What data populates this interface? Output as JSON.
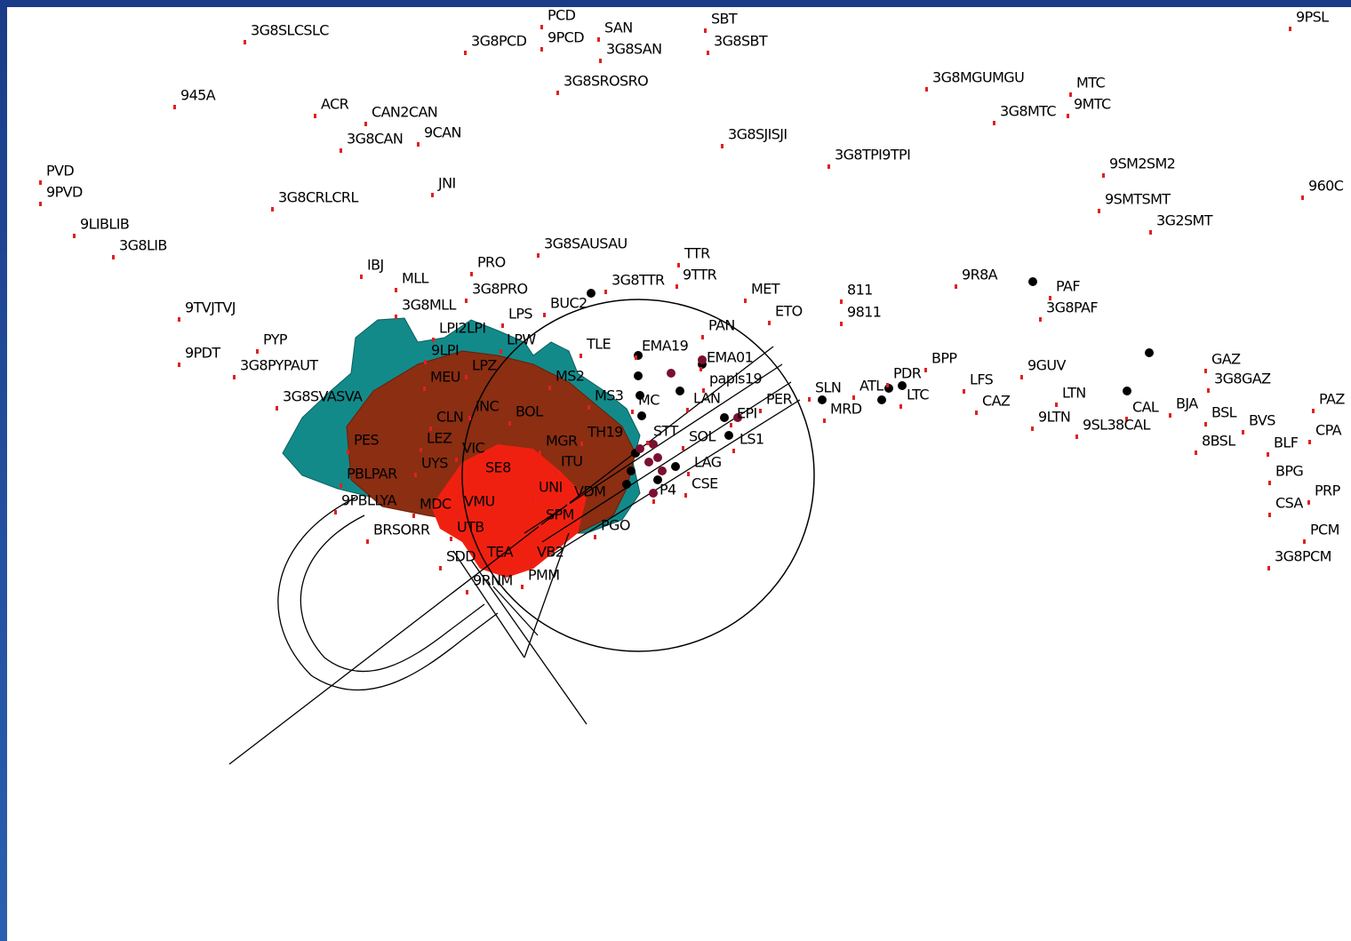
{
  "labels": [
    "PCD",
    "3G8SLCSLC",
    "3G8PCD",
    "9PCD",
    "SAN",
    "3G8SAN",
    "SBT",
    "3G8SBT",
    "9PSL",
    "3G8SROSRO",
    "945A",
    "ACR",
    "CAN2CAN",
    "3G8CAN",
    "9CAN",
    "3G8MGUMGU",
    "MTC",
    "3G8MTC",
    "9MTC",
    "3G8SJISJI",
    "3G8TPI9TPI",
    "9SM2SM2",
    "PVD",
    "9PVD",
    "JNI",
    "3G8CRLCRL",
    "960C",
    "9SMTSMT",
    "3G2SMT",
    "9LIBLIB",
    "3G8LIB",
    "3G8SAUSAU",
    "TTR",
    "9TTR",
    "3G8TTR",
    "PRO",
    "IBJ",
    "MLL",
    "3G8PRO",
    "9R8A",
    "PAF",
    "3G8PAF",
    "MET",
    "811",
    "ETO",
    "9811",
    "BUC2",
    "3G8MLL",
    "LPS",
    "9TVJTVJ",
    "LPI2LPI",
    "PAN",
    "PYP",
    "LPW",
    "TLE",
    "EMA19",
    "9LPI",
    "9PDT",
    "BPP",
    "EMA01",
    "GAZ",
    "3G8PYPAUT",
    "LPZ",
    "9GUV",
    "papis19",
    "MS2",
    "MEU",
    "PDR",
    "LFS",
    "3G8GAZ",
    "3G8SVASVA",
    "MS3",
    "MC",
    "LAN",
    "SLN",
    "ATL",
    "LTC",
    "PER",
    "LTN",
    "PAZ",
    "CAZ",
    "MRD",
    "INC",
    "BOL",
    "EPI",
    "CAL",
    "BJA",
    "CLN",
    "9LTN",
    "9SL38CAL",
    "BSL",
    "BVS",
    "TH19",
    "STT",
    "SOL",
    "LS1",
    "CPA",
    "LEZ",
    "PES",
    "MGR",
    "VIC",
    "8BSL",
    "BLF",
    "ITU",
    "LAG",
    "UYS",
    "SE8",
    "PBLPAR",
    "BPG",
    "CSE",
    "UNI",
    "VDM",
    "P4",
    "PRP",
    "9PBLLYA",
    "MDC",
    "VMU",
    "CSA",
    "SPM",
    "PGO",
    "BRSORR",
    "UTB",
    "PCM",
    "SDD",
    "TEA",
    "VB2",
    "3G8PCM",
    "9RNM",
    "PMM"
  ]
}
